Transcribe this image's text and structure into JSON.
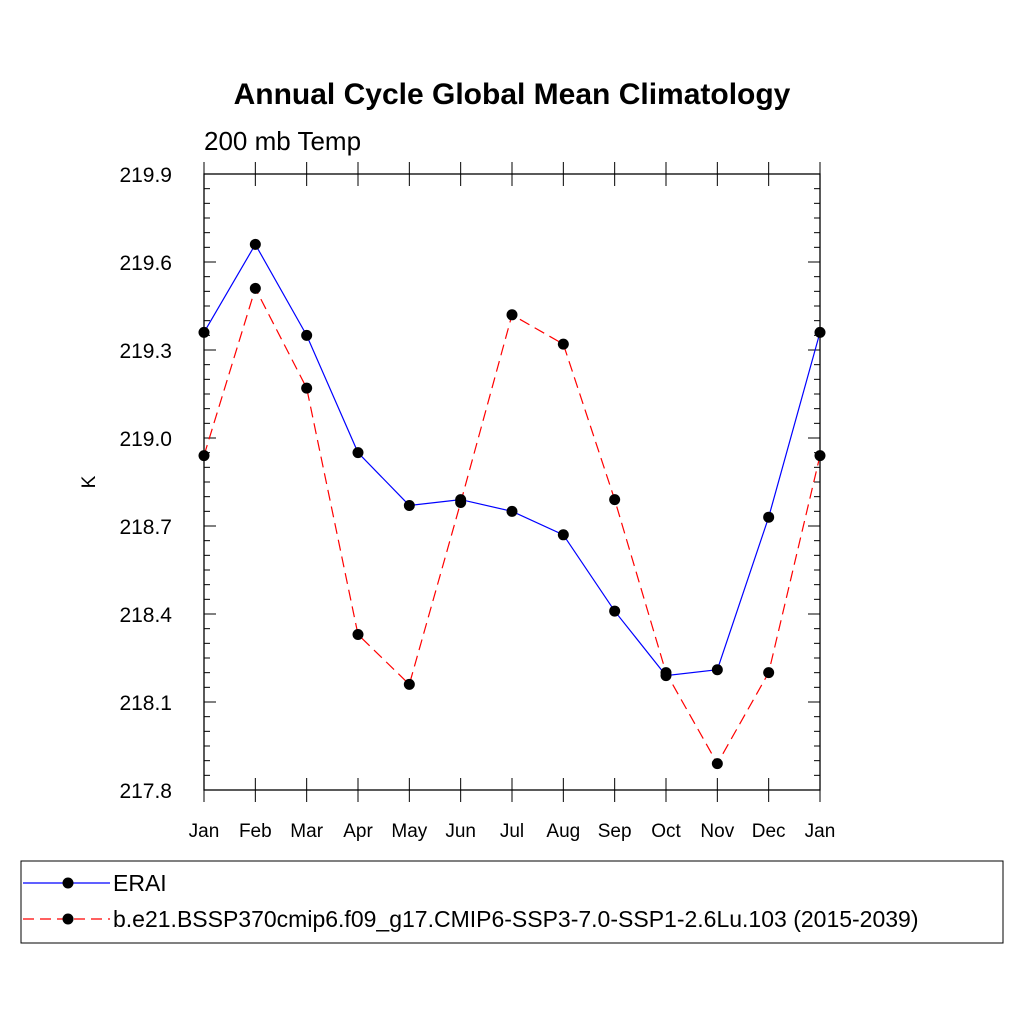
{
  "chart_data": {
    "type": "line",
    "title": "Annual Cycle Global Mean Climatology",
    "subtitle": "200 mb Temp",
    "ylabel": "K",
    "xlabel": "",
    "categories": [
      "Jan",
      "Feb",
      "Mar",
      "Apr",
      "May",
      "Jun",
      "Jul",
      "Aug",
      "Sep",
      "Oct",
      "Nov",
      "Dec",
      "Jan"
    ],
    "ylim": [
      217.8,
      219.9
    ],
    "yticks": [
      "217.8",
      "218.1",
      "218.4",
      "218.7",
      "219.0",
      "219.3",
      "219.6",
      "219.9"
    ],
    "ytick_values": [
      217.8,
      218.1,
      218.4,
      218.7,
      219.0,
      219.3,
      219.6,
      219.9
    ],
    "grid": false,
    "legend_position": "bottom",
    "series": [
      {
        "name": "ERAI",
        "color": "#0000ff",
        "line_style": "solid",
        "values": [
          219.36,
          219.66,
          219.35,
          218.95,
          218.77,
          218.79,
          218.75,
          218.67,
          218.41,
          218.19,
          218.21,
          218.73,
          219.36
        ]
      },
      {
        "name": "b.e21.BSSP370cmip6.f09_g17.CMIP6-SSP3-7.0-SSP1-2.6Lu.103 (2015-2039)",
        "color": "#ff0000",
        "line_style": "dashed",
        "values": [
          218.94,
          219.51,
          219.17,
          218.33,
          218.16,
          218.78,
          219.42,
          219.32,
          218.79,
          218.2,
          217.89,
          218.2,
          218.94
        ]
      }
    ]
  }
}
